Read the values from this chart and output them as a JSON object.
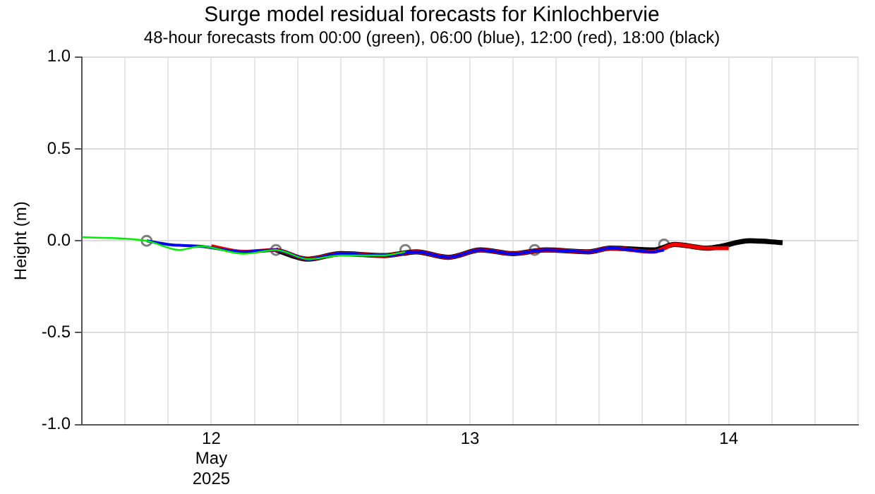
{
  "chart_data": {
    "type": "line",
    "title": "Surge model residual forecasts for Kinlochbervie",
    "subtitle": "48-hour forecasts from 00:00 (green), 06:00 (blue), 12:00 (red), 18:00 (black)",
    "ylabel": "Height (m)",
    "xlim": [
      "2025-05-12T00:00",
      "2025-05-15T00:00"
    ],
    "xticks": [
      {
        "value": "2025-05-12T00:00",
        "label": null
      },
      {
        "value": "2025-05-12T04:00",
        "label": null
      },
      {
        "value": "2025-05-12T08:00",
        "label": null
      },
      {
        "value": "2025-05-12T12:00",
        "label": "12\nMay\n2025"
      },
      {
        "value": "2025-05-12T16:00",
        "label": null
      },
      {
        "value": "2025-05-12T20:00",
        "label": null
      },
      {
        "value": "2025-05-13T00:00",
        "label": null
      },
      {
        "value": "2025-05-13T04:00",
        "label": null
      },
      {
        "value": "2025-05-13T08:00",
        "label": null
      },
      {
        "value": "2025-05-13T12:00",
        "label": "13"
      },
      {
        "value": "2025-05-13T16:00",
        "label": null
      },
      {
        "value": "2025-05-13T20:00",
        "label": null
      },
      {
        "value": "2025-05-14T00:00",
        "label": null
      },
      {
        "value": "2025-05-14T04:00",
        "label": null
      },
      {
        "value": "2025-05-14T08:00",
        "label": null
      },
      {
        "value": "2025-05-14T12:00",
        "label": "14"
      },
      {
        "value": "2025-05-14T16:00",
        "label": null
      },
      {
        "value": "2025-05-14T20:00",
        "label": null
      },
      {
        "value": "2025-05-15T00:00",
        "label": null
      }
    ],
    "ylim": [
      -1,
      1
    ],
    "yticks": [
      {
        "value": -1,
        "label": "-1.0"
      },
      {
        "value": -0.5,
        "label": "-0.5"
      },
      {
        "value": 0,
        "label": "0.0"
      },
      {
        "value": 0.5,
        "label": "0.5"
      },
      {
        "value": 1,
        "label": "1.0"
      }
    ],
    "grid": true,
    "legend": false,
    "marker": "none",
    "series": [
      {
        "color": "#00ee00",
        "x": [
          "2025-05-12T00:00",
          "2025-05-12T06:00",
          "2025-05-12T09:00",
          "2025-05-12T11:00",
          "2025-05-12T15:00",
          "2025-05-12T18:00",
          "2025-05-12T21:00",
          "2025-05-13T00:00",
          "2025-05-13T04:00",
          "2025-05-13T06:00"
        ],
        "values": [
          0.02,
          0.0,
          -0.05,
          -0.03,
          -0.07,
          -0.05,
          -0.1,
          -0.08,
          -0.08,
          -0.06
        ]
      },
      {
        "color": "#0000ee",
        "x": [
          "2025-05-12T06:00",
          "2025-05-12T08:00",
          "2025-05-12T11:00",
          "2025-05-12T15:00",
          "2025-05-12T18:00",
          "2025-05-12T21:00",
          "2025-05-13T00:00",
          "2025-05-13T04:00",
          "2025-05-13T07:00",
          "2025-05-13T10:00",
          "2025-05-13T13:00",
          "2025-05-13T16:00",
          "2025-05-13T19:00",
          "2025-05-13T23:00",
          "2025-05-14T01:00",
          "2025-05-14T05:00",
          "2025-05-14T06:00"
        ],
        "values": [
          0.0,
          -0.02,
          -0.03,
          -0.06,
          -0.05,
          -0.1,
          -0.07,
          -0.08,
          -0.06,
          -0.09,
          -0.05,
          -0.07,
          -0.05,
          -0.06,
          -0.04,
          -0.06,
          -0.05
        ]
      },
      {
        "color": "#ee0000",
        "x": [
          "2025-05-12T12:00",
          "2025-05-12T15:00",
          "2025-05-12T18:00",
          "2025-05-12T21:00",
          "2025-05-13T00:00",
          "2025-05-13T04:00",
          "2025-05-13T07:00",
          "2025-05-13T10:00",
          "2025-05-13T13:00",
          "2025-05-13T16:00",
          "2025-05-13T19:00",
          "2025-05-13T23:00",
          "2025-05-14T01:00",
          "2025-05-14T05:00",
          "2025-05-14T07:00",
          "2025-05-14T10:00",
          "2025-05-14T12:00"
        ],
        "values": [
          -0.03,
          -0.06,
          -0.05,
          -0.1,
          -0.07,
          -0.08,
          -0.06,
          -0.09,
          -0.05,
          -0.07,
          -0.05,
          -0.06,
          -0.04,
          -0.06,
          -0.02,
          -0.04,
          -0.04
        ]
      },
      {
        "color": "#000000",
        "x": [
          "2025-05-12T18:00",
          "2025-05-12T21:00",
          "2025-05-13T00:00",
          "2025-05-13T04:00",
          "2025-05-13T07:00",
          "2025-05-13T10:00",
          "2025-05-13T13:00",
          "2025-05-13T16:00",
          "2025-05-13T19:00",
          "2025-05-13T23:00",
          "2025-05-14T01:00",
          "2025-05-14T05:00",
          "2025-05-14T07:00",
          "2025-05-14T10:00",
          "2025-05-14T14:00",
          "2025-05-14T17:00"
        ],
        "values": [
          -0.05,
          -0.1,
          -0.07,
          -0.08,
          -0.06,
          -0.09,
          -0.05,
          -0.07,
          -0.05,
          -0.06,
          -0.04,
          -0.05,
          -0.02,
          -0.04,
          0.0,
          -0.01
        ]
      },
      {
        "type": "scatter",
        "marker": "circle",
        "color": "#808080",
        "x": [
          "2025-05-12T06:00",
          "2025-05-12T18:00",
          "2025-05-13T06:00",
          "2025-05-13T18:00",
          "2025-05-14T06:00"
        ],
        "values": [
          0.0,
          -0.05,
          -0.05,
          -0.05,
          -0.02
        ]
      }
    ]
  }
}
